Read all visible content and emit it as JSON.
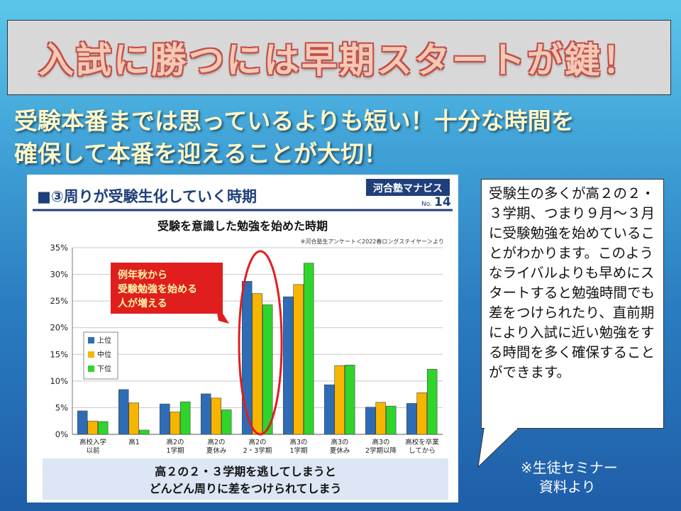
{
  "slide": {
    "title": "入試に勝つには早期スタートが鍵！",
    "subtitle_line1": "受験本番までは思っているよりも短い！十分な時間を",
    "subtitle_line2": "確保して本番を迎えることが大切！",
    "callout_text": "受験生の多くが高２の２・３学期、つまり９月～３月に受験勉強を始めていることがわかります。このようなライバルよりも早めにスタートすると勉強時間でも差をつけられたり、直前期により入試に近い勉強をする時間を多く確保することができます。",
    "footnote_line1": "※生徒セミナー",
    "footnote_line2": "資料より"
  },
  "panel": {
    "header": "■③周りが受験生化していく時期",
    "brand": "河合塾マナビス",
    "page_no_prefix": "No.",
    "page_no": "14",
    "source_note": "※河合塾生アンケート＜2022春ロングステイヤー＞より",
    "callout_line1": "例年秋から",
    "callout_line2": "受験勉強を始める",
    "callout_line3": "人が増える",
    "bottom_line1": "高２の２・３学期を逃してしまうと",
    "bottom_line2": "どんどん周りに差をつけられてしまう"
  },
  "colors": {
    "upper": "#2e6db5",
    "middle": "#f7b500",
    "lower": "#2fd52a",
    "highlight_red": "#e01e1e",
    "panel_header_blue": "#1f3f7a",
    "bottom_band": "#dce6f4"
  },
  "chart_data": {
    "type": "bar",
    "title": "受験を意識した勉強を始めた時期",
    "xlabel": "",
    "ylabel": "",
    "ylim": [
      0,
      35
    ],
    "yticks": [
      "0%",
      "5%",
      "10%",
      "15%",
      "20%",
      "25%",
      "30%",
      "35%"
    ],
    "grid": true,
    "legend_position": "left-middle",
    "categories": [
      [
        "高校入学",
        "以前"
      ],
      [
        "高1"
      ],
      [
        "高2の",
        "1学期"
      ],
      [
        "高2の",
        "夏休み"
      ],
      [
        "高2の",
        "2・3学期"
      ],
      [
        "高3の",
        "1学期"
      ],
      [
        "高3の",
        "夏休み"
      ],
      [
        "高3の",
        "2学期以降"
      ],
      [
        "高校を卒業",
        "してから"
      ]
    ],
    "series": [
      {
        "name": "上位",
        "color": "#2e6db5",
        "values": [
          4.4,
          8.4,
          5.7,
          7.6,
          28.7,
          25.8,
          9.3,
          5.1,
          5.8
        ]
      },
      {
        "name": "中位",
        "color": "#f7b500",
        "values": [
          2.5,
          5.9,
          4.2,
          6.8,
          26.4,
          28.1,
          12.9,
          6.0,
          7.8
        ]
      },
      {
        "name": "下位",
        "color": "#2fd52a",
        "values": [
          2.4,
          0.8,
          6.1,
          4.6,
          24.3,
          32.1,
          13.0,
          5.3,
          12.2
        ]
      }
    ]
  }
}
